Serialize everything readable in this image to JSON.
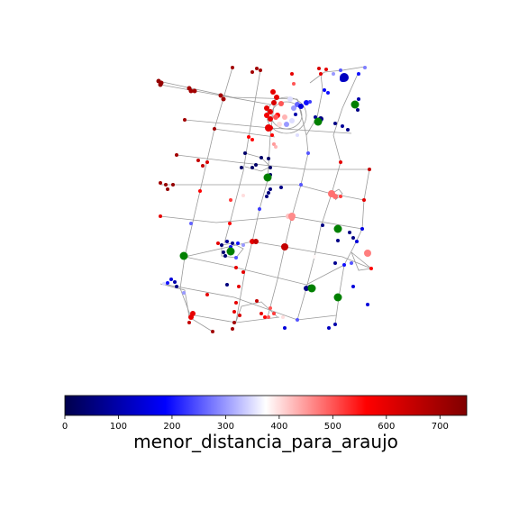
{
  "colorbar": {
    "label": "menor_distancia_para_araujo",
    "ticks": [
      "0",
      "100",
      "200",
      "300",
      "400",
      "500",
      "600",
      "700"
    ],
    "range": [
      0,
      750
    ],
    "colormap": "seismic",
    "stops": [
      "#00004c",
      "#0000ff",
      "#ffffff",
      "#ff0000",
      "#800000"
    ]
  },
  "map": {
    "edge_color": "#999999",
    "facility_color": "#008000"
  }
}
